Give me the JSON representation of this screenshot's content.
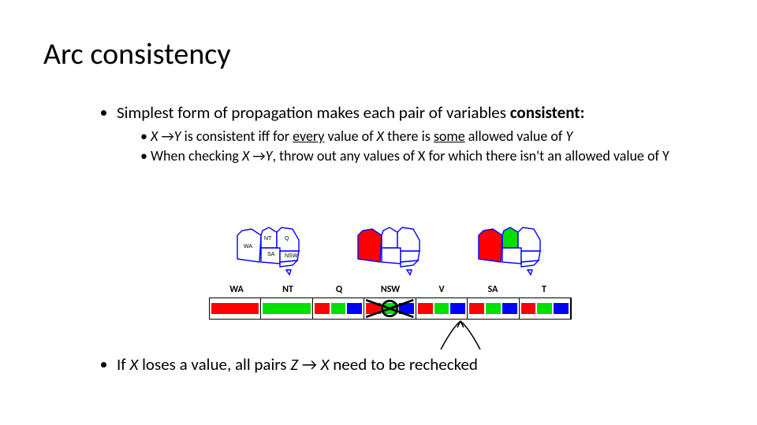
{
  "title": "Arc consistency",
  "bullets": {
    "b1_prefix": "Simplest form of propagation makes each pair of variables ",
    "b1_bold": "consistent:",
    "sub1_x": "X ",
    "sub1_arrow": "→",
    "sub1_y": "Y",
    "sub1_mid1": " is consistent iff for ",
    "sub1_every": "every",
    "sub1_mid2": " value of ",
    "sub1_xx": "X",
    "sub1_mid3": " there is ",
    "sub1_some": "some",
    "sub1_mid4": " allowed value of ",
    "sub1_yy": "Y",
    "sub2_a": "When checking ",
    "sub2_x": "X ",
    "sub2_arrow": "→",
    "sub2_y": "Y",
    "sub2_b": ", throw out any values of X for which there isn't an allowed value of Y",
    "b3_a": "If ",
    "b3_x": "X",
    "b3_b": " loses a value, all pairs ",
    "b3_z": "Z ",
    "b3_arrow": "→ ",
    "b3_xx": "X",
    "b3_c": " need to be rechecked"
  },
  "diagram": {
    "columns": [
      "WA",
      "NT",
      "Q",
      "NSW",
      "V",
      "SA",
      "T"
    ],
    "colors": {
      "red": "#ff0000",
      "green": "#00e000",
      "blue": "#0000ff",
      "black": "#000000",
      "white": "#ffffff",
      "outline": "#0000ff",
      "map_border": "#000000"
    },
    "strip": [
      {
        "region": "WA",
        "swatches": [
          "red"
        ]
      },
      {
        "region": "NT",
        "swatches": [
          "green"
        ]
      },
      {
        "region": "Q",
        "swatches": [
          "red",
          "green",
          "blue"
        ]
      },
      {
        "region": "NSW",
        "swatches": [
          "red",
          "green",
          "blue"
        ],
        "crossed": true
      },
      {
        "region": "V",
        "swatches": [
          "red",
          "green",
          "blue"
        ]
      },
      {
        "region": "SA",
        "swatches": [
          "red",
          "green",
          "blue"
        ]
      },
      {
        "region": "T",
        "swatches": [
          "red",
          "green",
          "blue"
        ]
      }
    ],
    "maps": [
      {
        "regions": [
          {
            "id": "WA",
            "fill": "white",
            "label": "WA"
          },
          {
            "id": "NT",
            "fill": "white",
            "label": "NT"
          },
          {
            "id": "Q",
            "fill": "white",
            "label": "Q"
          },
          {
            "id": "SA",
            "fill": "white",
            "label": "SA"
          },
          {
            "id": "NSW",
            "fill": "white",
            "label": "NSW"
          },
          {
            "id": "V",
            "fill": "white",
            "label": ""
          },
          {
            "id": "T",
            "fill": "white",
            "label": ""
          }
        ]
      },
      {
        "regions": [
          {
            "id": "WA",
            "fill": "red"
          },
          {
            "id": "NT",
            "fill": "white"
          },
          {
            "id": "Q",
            "fill": "white"
          },
          {
            "id": "SA",
            "fill": "white"
          },
          {
            "id": "NSW",
            "fill": "white"
          },
          {
            "id": "V",
            "fill": "white"
          },
          {
            "id": "T",
            "fill": "white"
          }
        ]
      },
      {
        "regions": [
          {
            "id": "WA",
            "fill": "red"
          },
          {
            "id": "NT",
            "fill": "green"
          },
          {
            "id": "Q",
            "fill": "white"
          },
          {
            "id": "SA",
            "fill": "white"
          },
          {
            "id": "NSW",
            "fill": "white"
          },
          {
            "id": "V",
            "fill": "white"
          },
          {
            "id": "T",
            "fill": "white"
          }
        ]
      }
    ],
    "font": {
      "title_pt": 38,
      "body_pt": 21,
      "sub_pt": 18,
      "label_pt": 12
    }
  }
}
